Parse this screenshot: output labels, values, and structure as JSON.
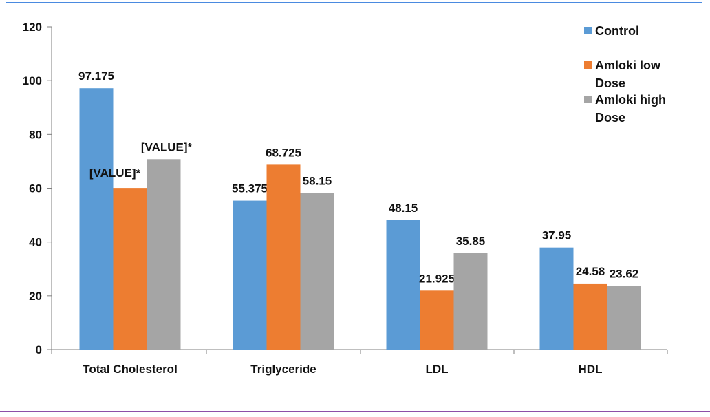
{
  "colors": {
    "frame_top": "#4a8ae0",
    "frame_bottom": "#8e4fa8",
    "axis": "#7f7f7f"
  },
  "chart_data": {
    "type": "bar",
    "title": "",
    "xlabel": "",
    "ylabel": "",
    "ylim": [
      0,
      120
    ],
    "yticks": [
      0,
      20,
      40,
      60,
      80,
      100,
      120
    ],
    "grid": false,
    "legend_position": "top-right",
    "categories": [
      "Total Cholesterol",
      "Triglyceride",
      "LDL",
      "HDL"
    ],
    "series": [
      {
        "name": "Control",
        "name_lines": [
          "Control"
        ],
        "color": "#5b9bd5",
        "values": [
          97.175,
          55.375,
          48.15,
          37.95
        ],
        "labels": [
          "97.175",
          "55.375",
          "48.15",
          "37.95"
        ]
      },
      {
        "name": "Amloki low Dose",
        "name_lines": [
          "Amloki low",
          "Dose"
        ],
        "color": "#ed7d31",
        "values": [
          60.1,
          68.725,
          21.925,
          24.58
        ],
        "labels": [
          "[VALUE]*",
          "68.725",
          "21.925",
          "24.58"
        ]
      },
      {
        "name": "Amloki high Dose",
        "name_lines": [
          "Amloki high",
          "Dose"
        ],
        "color": "#a5a5a5",
        "values": [
          70.8,
          58.15,
          35.85,
          23.62
        ],
        "labels": [
          "[VALUE]*",
          "58.15",
          "35.85",
          "23.62"
        ]
      }
    ]
  }
}
